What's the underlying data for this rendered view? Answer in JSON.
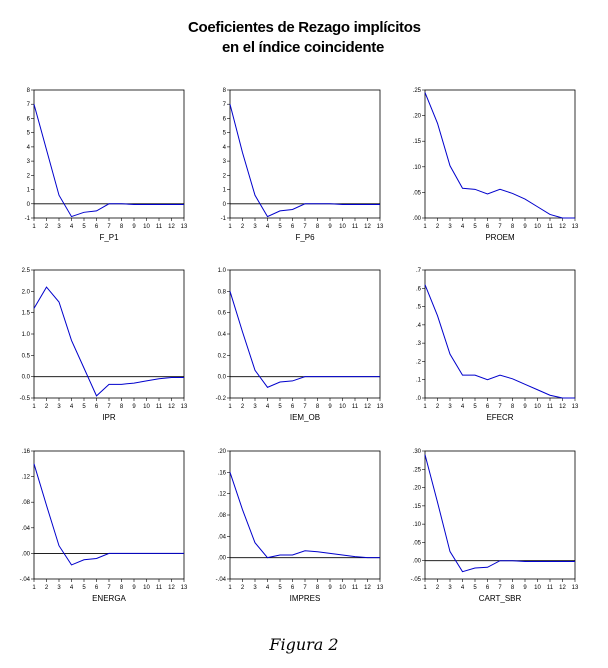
{
  "figure": {
    "title_line1": "Coeficientes de Rezago implícitos",
    "title_line2": "en el índice coincidente",
    "caption": "Figura 2"
  },
  "colors": {
    "series": "#0000cc",
    "axis": "#000000",
    "zero_line": "#000000"
  },
  "chart_data": [
    {
      "type": "line",
      "xlabel": "F_P1",
      "x": [
        1,
        2,
        3,
        4,
        5,
        6,
        7,
        8,
        9,
        10,
        11,
        12,
        13
      ],
      "ylim": [
        -1,
        8
      ],
      "yticks": [
        -1,
        0,
        1,
        2,
        3,
        4,
        5,
        6,
        7,
        8
      ],
      "ytick_labels": [
        "-1",
        "0",
        "1",
        "2",
        "3",
        "4",
        "5",
        "6",
        "7",
        "8"
      ],
      "values": [
        7.0,
        3.8,
        0.6,
        -0.9,
        -0.6,
        -0.5,
        0.0,
        0.0,
        -0.05,
        -0.05,
        -0.05,
        -0.05,
        -0.05
      ]
    },
    {
      "type": "line",
      "xlabel": "F_P6",
      "x": [
        1,
        2,
        3,
        4,
        5,
        6,
        7,
        8,
        9,
        10,
        11,
        12,
        13
      ],
      "ylim": [
        -1,
        8
      ],
      "yticks": [
        -1,
        0,
        1,
        2,
        3,
        4,
        5,
        6,
        7,
        8
      ],
      "ytick_labels": [
        "-1",
        "0",
        "1",
        "2",
        "3",
        "4",
        "5",
        "6",
        "7",
        "8"
      ],
      "values": [
        7.0,
        3.6,
        0.6,
        -0.9,
        -0.5,
        -0.4,
        0.0,
        0.0,
        0.0,
        -0.05,
        -0.05,
        -0.05,
        -0.05
      ]
    },
    {
      "type": "line",
      "xlabel": "PROEM",
      "x": [
        1,
        2,
        3,
        4,
        5,
        6,
        7,
        8,
        9,
        10,
        11,
        12,
        13
      ],
      "ylim": [
        0,
        0.25
      ],
      "yticks": [
        0,
        0.05,
        0.1,
        0.15,
        0.2,
        0.25
      ],
      "ytick_labels": [
        ".00",
        ".05",
        ".10",
        ".15",
        ".20",
        ".25"
      ],
      "values": [
        0.245,
        0.185,
        0.102,
        0.058,
        0.056,
        0.047,
        0.056,
        0.048,
        0.037,
        0.022,
        0.007,
        0.0,
        0.0
      ]
    },
    {
      "type": "line",
      "xlabel": "IPR",
      "x": [
        1,
        2,
        3,
        4,
        5,
        6,
        7,
        8,
        9,
        10,
        11,
        12,
        13
      ],
      "ylim": [
        -0.5,
        2.5
      ],
      "yticks": [
        -0.5,
        0,
        0.5,
        1,
        1.5,
        2,
        2.5
      ],
      "ytick_labels": [
        "-0.5",
        "0.0",
        "0.5",
        "1.0",
        "1.5",
        "2.0",
        "2.5"
      ],
      "values": [
        1.6,
        2.1,
        1.75,
        0.85,
        0.2,
        -0.45,
        -0.18,
        -0.18,
        -0.15,
        -0.1,
        -0.05,
        -0.02,
        -0.02
      ]
    },
    {
      "type": "line",
      "xlabel": "IEM_OB",
      "x": [
        1,
        2,
        3,
        4,
        5,
        6,
        7,
        8,
        9,
        10,
        11,
        12,
        13
      ],
      "ylim": [
        -0.2,
        1.0
      ],
      "yticks": [
        -0.2,
        0,
        0.2,
        0.4,
        0.6,
        0.8,
        1.0
      ],
      "ytick_labels": [
        "-0.2",
        "0.0",
        "0.2",
        "0.4",
        "0.6",
        "0.8",
        "1.0"
      ],
      "values": [
        0.8,
        0.42,
        0.06,
        -0.1,
        -0.05,
        -0.04,
        0.0,
        0.0,
        0.0,
        0.0,
        0.0,
        0.0,
        0.0
      ]
    },
    {
      "type": "line",
      "xlabel": "EFECR",
      "x": [
        1,
        2,
        3,
        4,
        5,
        6,
        7,
        8,
        9,
        10,
        11,
        12,
        13
      ],
      "ylim": [
        0,
        0.7
      ],
      "yticks": [
        0,
        0.1,
        0.2,
        0.3,
        0.4,
        0.5,
        0.6,
        0.7
      ],
      "ytick_labels": [
        ".0",
        ".1",
        ".2",
        ".3",
        ".4",
        ".5",
        ".6",
        ".7"
      ],
      "values": [
        0.62,
        0.45,
        0.24,
        0.125,
        0.125,
        0.1,
        0.125,
        0.105,
        0.075,
        0.045,
        0.015,
        0.0,
        0.0
      ]
    },
    {
      "type": "line",
      "xlabel": "ENERGA",
      "x": [
        1,
        2,
        3,
        4,
        5,
        6,
        7,
        8,
        9,
        10,
        11,
        12,
        13
      ],
      "ylim": [
        -0.04,
        0.16
      ],
      "yticks": [
        -0.04,
        0,
        0.04,
        0.08,
        0.12,
        0.16
      ],
      "ytick_labels": [
        "-.04",
        ".00",
        ".04",
        ".08",
        ".12",
        ".16"
      ],
      "values": [
        0.14,
        0.075,
        0.012,
        -0.018,
        -0.01,
        -0.008,
        0.0,
        0.0,
        0.0,
        0.0,
        0.0,
        0.0,
        0.0
      ]
    },
    {
      "type": "line",
      "xlabel": "IMPRES",
      "x": [
        1,
        2,
        3,
        4,
        5,
        6,
        7,
        8,
        9,
        10,
        11,
        12,
        13
      ],
      "ylim": [
        -0.04,
        0.2
      ],
      "yticks": [
        -0.04,
        0,
        0.04,
        0.08,
        0.12,
        0.16,
        0.2
      ],
      "ytick_labels": [
        "-.04",
        ".00",
        ".04",
        ".08",
        ".12",
        ".16",
        ".20"
      ],
      "values": [
        0.16,
        0.09,
        0.028,
        0.0,
        0.005,
        0.005,
        0.013,
        0.011,
        0.008,
        0.005,
        0.002,
        0.0,
        0.0
      ]
    },
    {
      "type": "line",
      "xlabel": "CART_SBR",
      "x": [
        1,
        2,
        3,
        4,
        5,
        6,
        7,
        8,
        9,
        10,
        11,
        12,
        13
      ],
      "ylim": [
        -0.05,
        0.3
      ],
      "yticks": [
        -0.05,
        0,
        0.05,
        0.1,
        0.15,
        0.2,
        0.25,
        0.3
      ],
      "ytick_labels": [
        "-.05",
        ".00",
        ".05",
        ".10",
        ".15",
        ".20",
        ".25",
        ".30"
      ],
      "values": [
        0.29,
        0.16,
        0.025,
        -0.03,
        -0.02,
        -0.018,
        0.0,
        0.0,
        -0.002,
        -0.002,
        -0.002,
        -0.002,
        -0.002
      ]
    }
  ]
}
